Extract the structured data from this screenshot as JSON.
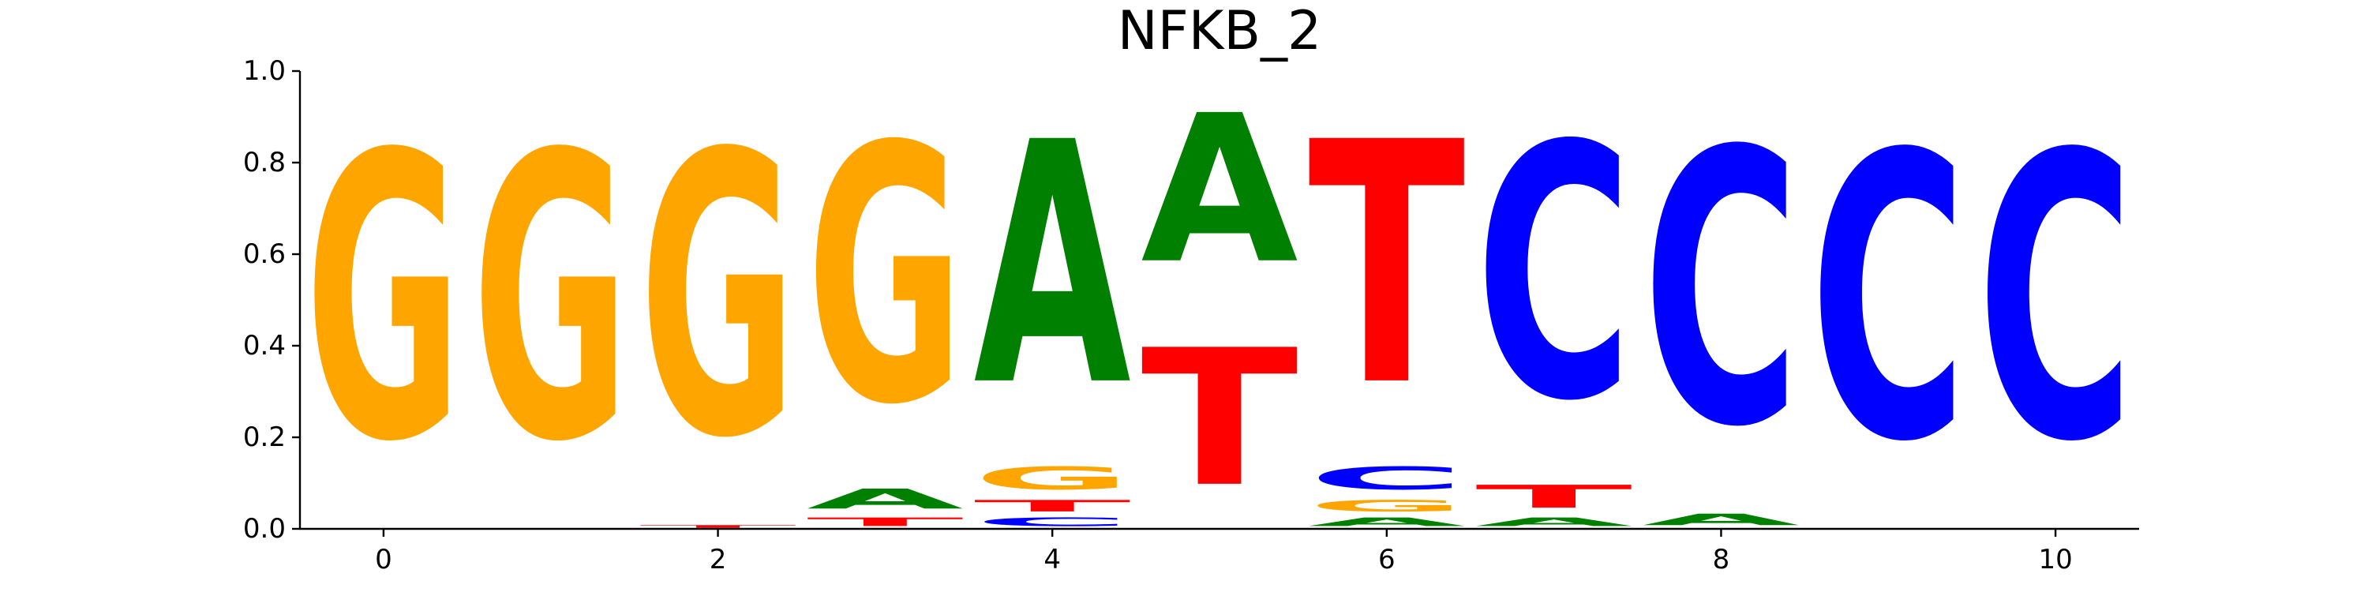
{
  "chart_data": {
    "type": "sequence-logo",
    "title": "NFKB_2",
    "xlabel": "",
    "ylabel": "",
    "ylim": [
      0,
      1.0
    ],
    "xlim": [
      -0.5,
      10.5
    ],
    "x_ticks": [
      0,
      2,
      4,
      6,
      8,
      10
    ],
    "y_ticks": [
      0.0,
      0.2,
      0.4,
      0.6,
      0.8,
      1.0
    ],
    "x_tick_labels": [
      "0",
      "2",
      "4",
      "6",
      "8",
      "10"
    ],
    "y_tick_labels": [
      "0.0",
      "0.2",
      "0.4",
      "0.6",
      "0.8",
      "1.0"
    ],
    "colors": {
      "A": "#008000",
      "C": "#0000ff",
      "G": "#ffa500",
      "T": "#ff0000"
    },
    "positions": [
      {
        "x": 0,
        "letters": [
          {
            "base": "G",
            "value": 1.0
          }
        ]
      },
      {
        "x": 1,
        "letters": [
          {
            "base": "G",
            "value": 1.0
          }
        ]
      },
      {
        "x": 2,
        "letters": [
          {
            "base": "T",
            "value": 0.01
          },
          {
            "base": "G",
            "value": 0.99
          }
        ]
      },
      {
        "x": 3,
        "letters": [
          {
            "base": "T",
            "value": 0.03
          },
          {
            "base": "A",
            "value": 0.07
          },
          {
            "base": "G",
            "value": 0.9
          }
        ]
      },
      {
        "x": 4,
        "letters": [
          {
            "base": "C",
            "value": 0.03
          },
          {
            "base": "T",
            "value": 0.04
          },
          {
            "base": "G",
            "value": 0.08
          },
          {
            "base": "A",
            "value": 0.85
          }
        ]
      },
      {
        "x": 5,
        "letters": [
          {
            "base": "T",
            "value": 0.48
          },
          {
            "base": "A",
            "value": 0.52
          }
        ]
      },
      {
        "x": 6,
        "letters": [
          {
            "base": "A",
            "value": 0.03
          },
          {
            "base": "G",
            "value": 0.04
          },
          {
            "base": "C",
            "value": 0.08
          },
          {
            "base": "T",
            "value": 0.85
          }
        ]
      },
      {
        "x": 7,
        "letters": [
          {
            "base": "A",
            "value": 0.03
          },
          {
            "base": "T",
            "value": 0.08
          },
          {
            "base": "C",
            "value": 0.89
          }
        ]
      },
      {
        "x": 8,
        "letters": [
          {
            "base": "A",
            "value": 0.04
          },
          {
            "base": "C",
            "value": 0.96
          }
        ]
      },
      {
        "x": 9,
        "letters": [
          {
            "base": "C",
            "value": 1.0
          }
        ]
      },
      {
        "x": 10,
        "letters": [
          {
            "base": "C",
            "value": 1.0
          }
        ]
      }
    ]
  }
}
